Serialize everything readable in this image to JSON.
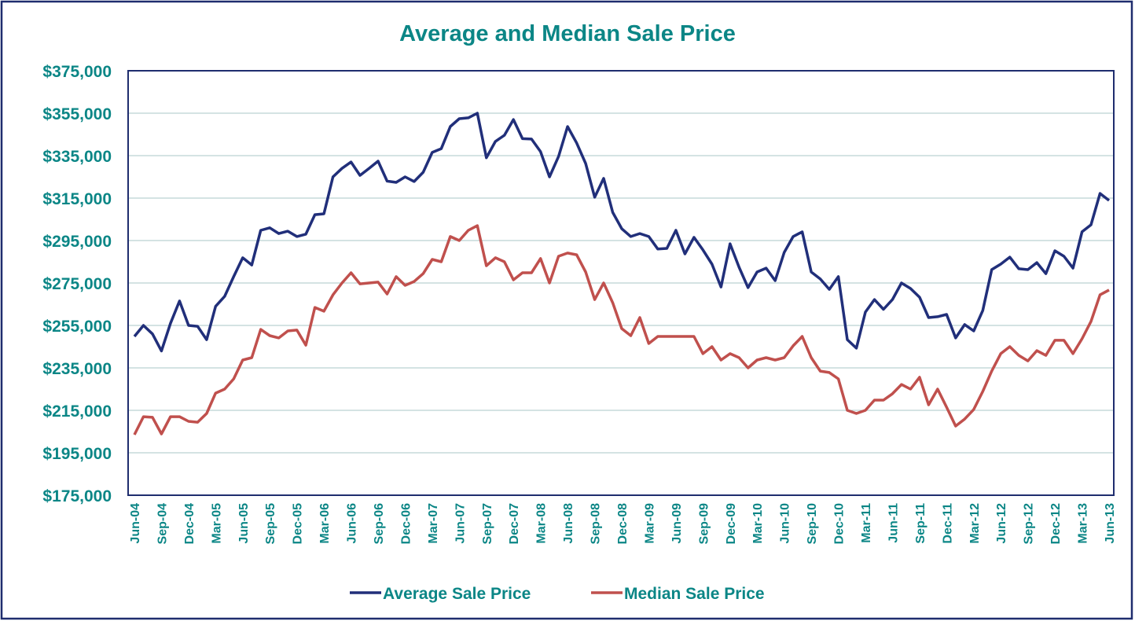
{
  "chart_data": {
    "type": "line",
    "title": "Average and Median Sale Price",
    "categories": [
      "Jun-04",
      null,
      null,
      "Sep-04",
      null,
      null,
      "Dec-04",
      null,
      null,
      "Mar-05",
      null,
      null,
      "Jun-05",
      null,
      null,
      "Sep-05",
      null,
      null,
      "Dec-05",
      null,
      null,
      "Mar-06",
      null,
      null,
      "Jun-06",
      null,
      null,
      "Sep-06",
      null,
      null,
      "Dec-06",
      null,
      null,
      "Mar-07",
      null,
      null,
      "Jun-07",
      null,
      null,
      "Sep-07",
      null,
      null,
      "Dec-07",
      null,
      null,
      "Mar-08",
      null,
      null,
      "Jun-08",
      null,
      null,
      "Sep-08",
      null,
      null,
      "Dec-08",
      null,
      null,
      "Mar-09",
      null,
      null,
      "Jun-09",
      null,
      null,
      "Sep-09",
      null,
      null,
      "Dec-09",
      null,
      null,
      "Mar-10",
      null,
      null,
      "Jun-10",
      null,
      null,
      "Sep-10",
      null,
      null,
      "Dec-10",
      null,
      null,
      "Mar-11",
      null,
      null,
      "Jun-11",
      null,
      null,
      "Sep-11",
      null,
      null,
      "Dec-11",
      null,
      null,
      "Mar-12",
      null,
      null,
      "Jun-12",
      null,
      null,
      "Sep-12",
      null,
      null,
      "Dec-12",
      null,
      null,
      "Mar-13",
      null,
      null,
      "Jun-13"
    ],
    "series": [
      {
        "name": "Average Sale Price",
        "color": "#212f7a",
        "values": [
          249800,
          255000,
          251000,
          243000,
          256000,
          266500,
          255000,
          254600,
          248300,
          264000,
          268700,
          278000,
          286900,
          283500,
          299800,
          301000,
          298300,
          299400,
          296900,
          298000,
          307200,
          307600,
          325000,
          329000,
          332000,
          325700,
          329000,
          332400,
          323000,
          322400,
          325000,
          322800,
          327200,
          336500,
          338300,
          348700,
          352400,
          352800,
          355000,
          334000,
          341700,
          344600,
          352000,
          343000,
          342800,
          336900,
          325000,
          334600,
          348700,
          341000,
          331300,
          315400,
          324300,
          308300,
          300600,
          296900,
          298300,
          296900,
          291000,
          291300,
          299800,
          288700,
          296500,
          290600,
          283900,
          273100,
          293500,
          282400,
          272800,
          280200,
          282000,
          276100,
          289400,
          296900,
          299100,
          280200,
          276900,
          272000,
          278000,
          248300,
          244300,
          261300,
          267200,
          262600,
          267200,
          275000,
          272400,
          268300,
          258700,
          259100,
          260200,
          249100,
          255400,
          252400,
          262000,
          281300,
          283900,
          287200,
          281700,
          281300,
          284600,
          279400,
          290200,
          287600,
          282000,
          299100,
          302400,
          317200,
          313900
        ]
      },
      {
        "name": "Median Sale Price",
        "color": "#c0504d",
        "values": [
          203500,
          212000,
          211700,
          203900,
          212000,
          212000,
          209800,
          209400,
          213500,
          223100,
          225000,
          229800,
          238700,
          239800,
          253100,
          250200,
          249100,
          252400,
          252800,
          245700,
          263500,
          261700,
          269400,
          275000,
          279800,
          274600,
          275000,
          275400,
          269800,
          278000,
          273900,
          275700,
          279400,
          286100,
          285000,
          296900,
          295000,
          299800,
          302000,
          283100,
          286900,
          285000,
          276500,
          279800,
          279800,
          286500,
          275000,
          287600,
          289100,
          288300,
          280200,
          267200,
          275000,
          265700,
          253500,
          250200,
          258700,
          246500,
          249800,
          249800,
          249800,
          249800,
          249800,
          241700,
          245000,
          238700,
          241700,
          239800,
          235000,
          238700,
          239800,
          238700,
          239800,
          245400,
          249800,
          239800,
          233500,
          232800,
          229800,
          215000,
          213500,
          215000,
          219800,
          219800,
          222800,
          227200,
          225000,
          230600,
          217600,
          225000,
          216500,
          207600,
          210900,
          215400,
          223900,
          233500,
          241700,
          245000,
          240900,
          238300,
          243100,
          240900,
          248000,
          248000,
          241700,
          248700,
          256900,
          269400,
          271700
        ]
      }
    ],
    "ylim": [
      175000,
      375000
    ],
    "yticks": [
      {
        "value": 175000,
        "label": "$175,000"
      },
      {
        "value": 195000,
        "label": "$195,000"
      },
      {
        "value": 215000,
        "label": "$215,000"
      },
      {
        "value": 235000,
        "label": "$235,000"
      },
      {
        "value": 255000,
        "label": "$255,000"
      },
      {
        "value": 275000,
        "label": "$275,000"
      },
      {
        "value": 295000,
        "label": "$295,000"
      },
      {
        "value": 315000,
        "label": "$315,000"
      },
      {
        "value": 335000,
        "label": "$335,000"
      },
      {
        "value": 355000,
        "label": "$355,000"
      },
      {
        "value": 375000,
        "label": "$375,000"
      }
    ],
    "grid": true,
    "legend": "bottom"
  }
}
